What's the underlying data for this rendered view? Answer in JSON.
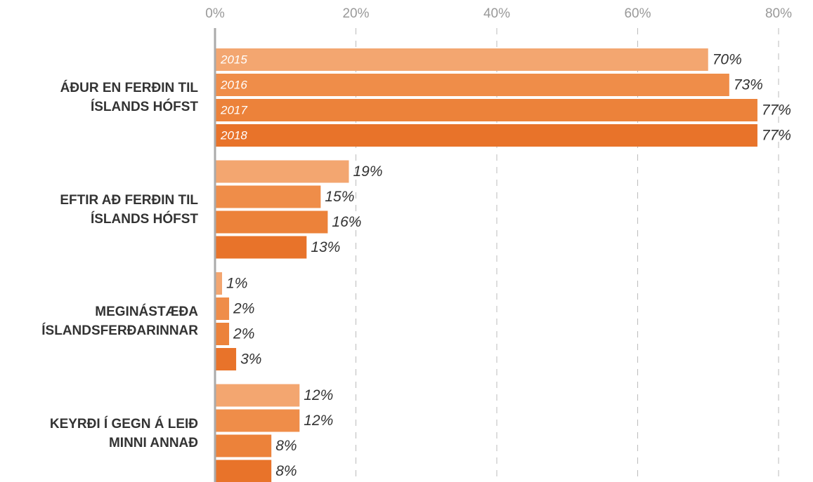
{
  "chart_data": {
    "type": "bar",
    "orientation": "horizontal",
    "categories": [
      "ÁÐUR EN FERÐIN TIL ÍSLANDS HÓFST",
      "EFTIR AÐ FERÐIN TIL ÍSLANDS HÓFST",
      "MEGINÁSTÆÐA ÍSLANDSFERÐARINNAR",
      "KEYRÐI Í GEGN Á LEIÐ MINNI ANNAÐ"
    ],
    "series": [
      {
        "name": "2015",
        "color": "#f3a670",
        "values": [
          70,
          19,
          1,
          12
        ],
        "value_labels": [
          "70%",
          "19%",
          "1%",
          "12%"
        ]
      },
      {
        "name": "2016",
        "color": "#ef8d49",
        "values": [
          73,
          15,
          2,
          12
        ],
        "value_labels": [
          "73%",
          "15%",
          "2%",
          "12%"
        ]
      },
      {
        "name": "2017",
        "color": "#ec823a",
        "values": [
          77,
          16,
          2,
          8
        ],
        "value_labels": [
          "77%",
          "16%",
          "2%",
          "8%"
        ]
      },
      {
        "name": "2018",
        "color": "#e8732a",
        "values": [
          77,
          13,
          3,
          8
        ],
        "value_labels": [
          "77%",
          "13%",
          "3%",
          "8%"
        ]
      }
    ],
    "xlim": [
      0,
      82
    ],
    "xticks": [
      {
        "value": 0,
        "label": "0%"
      },
      {
        "value": 20,
        "label": "20%"
      },
      {
        "value": 40,
        "label": "40%"
      },
      {
        "value": 60,
        "label": "60%"
      },
      {
        "value": 80,
        "label": "80%"
      }
    ],
    "grid": true
  }
}
